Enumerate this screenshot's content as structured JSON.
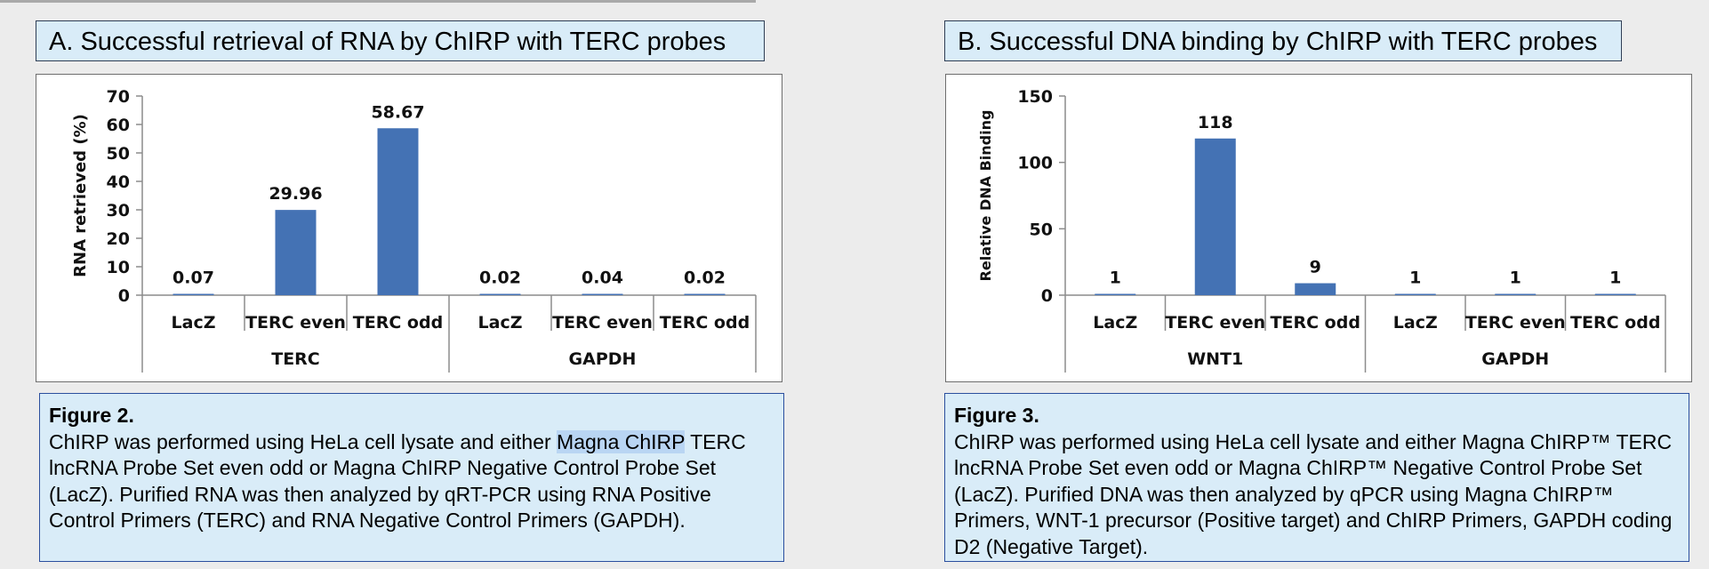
{
  "panelA": {
    "title": "A. Successful retrieval of  RNA  by ChIRP with TERC probes",
    "caption": {
      "label": "Figure 2.",
      "text_before": "ChIRP was performed using HeLa cell lysate and either ",
      "highlighted": "Magna ChIRP",
      "text_after": " TERC lncRNA Probe Set even odd or Magna ChIRP Negative Control Probe Set (LacZ). Purified RNA was then analyzed by qRT-PCR using RNA Positive Control Primers (TERC) and RNA Negative Control Primers (GAPDH)."
    }
  },
  "panelB": {
    "title": "B. Successful DNA binding by ChIRP with TERC probes",
    "caption": {
      "label": "Figure 3.",
      "text": "ChIRP was performed using HeLa cell lysate and either Magna ChIRP™ TERC lncRNA Probe Set even odd or Magna ChIRP™ Negative Control Probe Set (LacZ). Purified DNA was then analyzed by qPCR using Magna ChIRP™ Primers, WNT-1 precursor (Positive target) and ChIRP Primers, GAPDH coding D2 (Negative Target)."
    }
  },
  "chart_data": [
    {
      "type": "bar",
      "ylabel": "RNA retrieved (%)",
      "ylim": [
        0,
        70
      ],
      "yticks": [
        0,
        10,
        20,
        30,
        40,
        50,
        60,
        70
      ],
      "categories": [
        "LacZ",
        "TERC even",
        "TERC odd",
        "LacZ",
        "TERC even",
        "TERC odd"
      ],
      "groups": [
        {
          "label": "TERC",
          "span": 3
        },
        {
          "label": "GAPDH",
          "span": 3
        }
      ],
      "values": [
        0.07,
        29.96,
        58.67,
        0.02,
        0.04,
        0.02
      ],
      "data_labels": [
        "0.07",
        "29.96",
        "58.67",
        "0.02",
        "0.04",
        "0.02"
      ],
      "bar_color": "#4472b4",
      "grid": false
    },
    {
      "type": "bar",
      "ylabel": "Relative DNA Binding",
      "ylim": [
        0,
        150
      ],
      "yticks": [
        0,
        50,
        100,
        150
      ],
      "categories": [
        "LacZ",
        "TERC even",
        "TERC odd",
        "LacZ",
        "TERC even",
        "TERC odd"
      ],
      "groups": [
        {
          "label": "WNT1",
          "span": 3
        },
        {
          "label": "GAPDH",
          "span": 3
        }
      ],
      "values": [
        1,
        118,
        9,
        1,
        1,
        1
      ],
      "data_labels": [
        "1",
        "118",
        "9",
        "1",
        "1",
        "1"
      ],
      "bar_color": "#4472b4",
      "grid": false
    }
  ]
}
